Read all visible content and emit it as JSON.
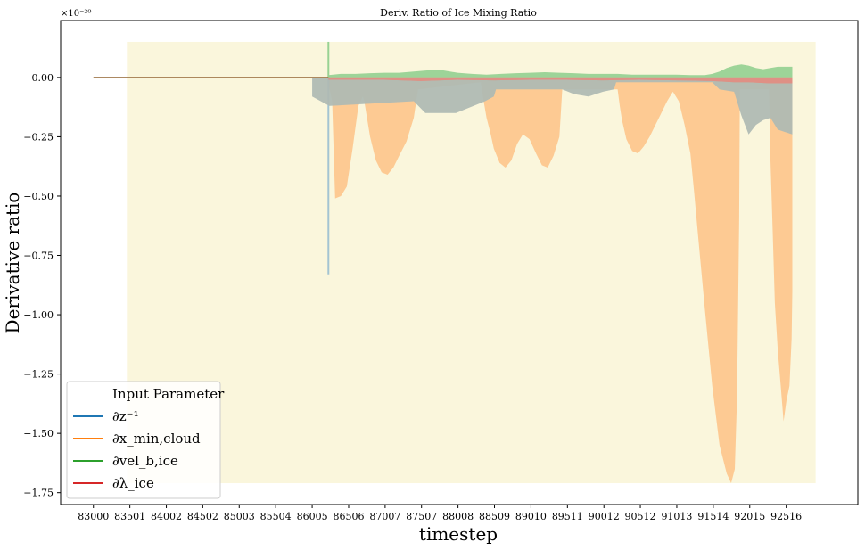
{
  "chart_data": {
    "type": "area",
    "title": "Deriv. Ratio of Ice Mixing Ratio",
    "xlabel": "timestep",
    "ylabel": "Derivative ratio",
    "y_scale_label": "×10⁻²⁰",
    "xlim": [
      82550,
      93500
    ],
    "ylim": [
      -1.8,
      0.24
    ],
    "x_ticks": [
      83000,
      83501,
      84002,
      84502,
      85003,
      85504,
      86005,
      86506,
      87007,
      87507,
      88008,
      88509,
      89010,
      89511,
      90012,
      90512,
      91013,
      91514,
      92015,
      92516
    ],
    "y_ticks": [
      0.0,
      -0.25,
      -0.5,
      -0.75,
      -1.0,
      -1.25,
      -1.5,
      -1.75
    ],
    "y_tick_labels": [
      "0.00",
      "−0.25",
      "−0.50",
      "−0.75",
      "−1.00",
      "−1.25",
      "−1.50",
      "−1.75"
    ],
    "grid": false,
    "background_band": {
      "x_start": 83460,
      "x_end": 92920,
      "y_top": 0.15,
      "y_bottom": -1.71,
      "color": "#faf6dc"
    },
    "legend": {
      "title": "Input Parameter",
      "placement": "lower-left",
      "entries": [
        {
          "label": "∂z⁻¹",
          "color": "#1f77b4"
        },
        {
          "label": "∂x_min,cloud",
          "color": "#ff7f0e"
        },
        {
          "label": "∂vel_b,ice",
          "color": "#2ca02c"
        },
        {
          "label": "∂λ_ice",
          "color": "#d62728"
        }
      ]
    },
    "series": [
      {
        "name": "∂x_min,cloud",
        "color": "#ff7f0e",
        "fill_color": "#fdc78e",
        "x": [
          86230,
          86280,
          86320,
          86400,
          86480,
          86560,
          86640,
          86700,
          86720,
          86800,
          86880,
          86960,
          87040,
          87120,
          87200,
          87300,
          87400,
          87440,
          87460,
          88320,
          88360,
          88400,
          88450,
          88500,
          88580,
          88660,
          88740,
          88820,
          88900,
          88990,
          89080,
          89160,
          89240,
          89320,
          89400,
          89440,
          90200,
          90230,
          90260,
          90320,
          90400,
          90480,
          90560,
          90640,
          90720,
          90800,
          90880,
          90960,
          91040,
          91120,
          91200,
          91250,
          91300,
          91400,
          91500,
          91600,
          91700,
          91760,
          91810,
          91840,
          91870,
          91880,
          92280,
          92300,
          92330,
          92360,
          92400,
          92440,
          92480,
          92520,
          92560,
          92590,
          92600
        ],
        "values": [
          -0.03,
          -0.1,
          -0.51,
          -0.5,
          -0.46,
          -0.3,
          -0.12,
          -0.08,
          -0.1,
          -0.25,
          -0.35,
          -0.4,
          -0.41,
          -0.38,
          -0.33,
          -0.27,
          -0.17,
          -0.09,
          -0.05,
          -0.02,
          -0.1,
          -0.17,
          -0.23,
          -0.3,
          -0.36,
          -0.38,
          -0.35,
          -0.28,
          -0.24,
          -0.26,
          -0.32,
          -0.37,
          -0.38,
          -0.33,
          -0.25,
          -0.05,
          -0.05,
          -0.12,
          -0.18,
          -0.26,
          -0.31,
          -0.32,
          -0.29,
          -0.25,
          -0.2,
          -0.15,
          -0.1,
          -0.06,
          -0.1,
          -0.2,
          -0.32,
          -0.48,
          -0.65,
          -0.98,
          -1.3,
          -1.55,
          -1.67,
          -1.71,
          -1.65,
          -1.35,
          -0.6,
          -0.05,
          -0.05,
          -0.35,
          -0.65,
          -0.95,
          -1.15,
          -1.3,
          -1.45,
          -1.36,
          -1.3,
          -1.1,
          -0.9
        ]
      },
      {
        "name": "∂z⁻¹",
        "color": "#1f77b4",
        "fill_color": "#a3c4d2",
        "x": [
          86005,
          86240,
          87400,
          87560,
          87800,
          87980,
          88380,
          88500,
          88530,
          89440,
          89600,
          89800,
          90000,
          90150,
          90180,
          91500,
          91600,
          91800,
          91900,
          92000,
          92100,
          92200,
          92300,
          92400,
          92500,
          92600
        ],
        "values": [
          -0.08,
          -0.12,
          -0.1,
          -0.15,
          -0.15,
          -0.15,
          -0.1,
          -0.08,
          -0.05,
          -0.05,
          -0.07,
          -0.08,
          -0.06,
          -0.05,
          -0.02,
          -0.02,
          -0.05,
          -0.06,
          -0.16,
          -0.24,
          -0.2,
          -0.18,
          -0.17,
          -0.22,
          -0.23,
          -0.24
        ],
        "spike": {
          "x": 86228,
          "value": -0.83
        }
      },
      {
        "name": "∂vel_b,ice",
        "color": "#2ca02c",
        "fill_color": "#98d293",
        "x": [
          86230,
          86400,
          86600,
          86800,
          87000,
          87200,
          87400,
          87600,
          87800,
          88000,
          88200,
          88400,
          88600,
          88800,
          89000,
          89200,
          89400,
          89600,
          89800,
          90000,
          90200,
          90400,
          90600,
          90800,
          91000,
          91200,
          91400,
          91500,
          91600,
          91700,
          91800,
          91900,
          92000,
          92100,
          92200,
          92300,
          92400,
          92500,
          92600
        ],
        "values": [
          0.01,
          0.015,
          0.015,
          0.018,
          0.02,
          0.02,
          0.025,
          0.03,
          0.03,
          0.02,
          0.015,
          0.012,
          0.015,
          0.018,
          0.02,
          0.022,
          0.02,
          0.018,
          0.015,
          0.015,
          0.015,
          0.012,
          0.012,
          0.012,
          0.012,
          0.01,
          0.01,
          0.015,
          0.025,
          0.04,
          0.05,
          0.055,
          0.05,
          0.04,
          0.035,
          0.04,
          0.045,
          0.045,
          0.045
        ],
        "spike": {
          "x": 86228,
          "value": 0.15
        }
      },
      {
        "name": "∂λ_ice",
        "color": "#d62728",
        "fill_color": "#df8f85",
        "x": [
          86230,
          87000,
          87500,
          88000,
          88500,
          89000,
          89500,
          90000,
          90500,
          91000,
          91500,
          91800,
          92000,
          92300,
          92600
        ],
        "values": [
          -0.01,
          -0.01,
          -0.015,
          -0.01,
          -0.012,
          -0.01,
          -0.01,
          -0.012,
          -0.01,
          -0.012,
          -0.015,
          -0.02,
          -0.02,
          -0.025,
          -0.025
        ]
      }
    ],
    "overlap_tint_color": "#c4a882",
    "baseline_line": {
      "x_start": 83000,
      "x_end": 86228,
      "value": 0.0,
      "color": "#a0784b"
    }
  }
}
